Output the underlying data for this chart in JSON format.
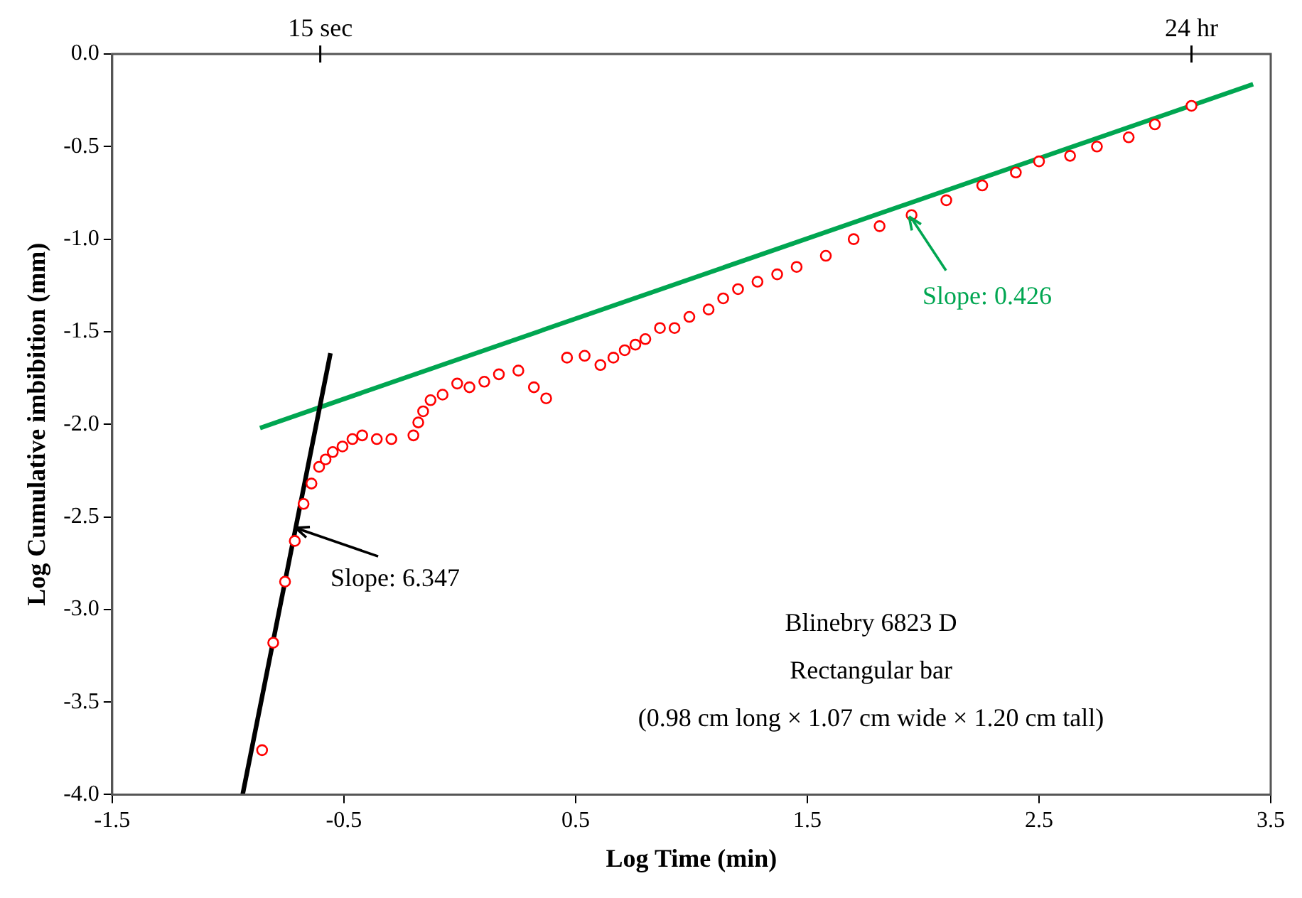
{
  "chart_data": {
    "type": "scatter",
    "xlabel": "Log Time (min)",
    "ylabel": "Log Cumulative imbibition (mm)",
    "xlim": [
      -1.5,
      3.5
    ],
    "xticks": [
      -1.5,
      -0.5,
      0.5,
      1.5,
      2.5,
      3.5
    ],
    "ylim": [
      -4.0,
      0.0
    ],
    "yticks": [
      {
        "value": -4,
        "label": "-4.0"
      },
      {
        "value": -3.5,
        "label": "-3.5"
      },
      {
        "value": -3,
        "label": "-3.0"
      },
      {
        "value": -2.5,
        "label": "-2.5"
      },
      {
        "value": -2,
        "label": "-2.0"
      },
      {
        "value": -1.5,
        "label": "-1.5"
      },
      {
        "value": -1,
        "label": "-1.0"
      },
      {
        "value": -0.5,
        "label": "-0.5"
      },
      {
        "value": 0,
        "label": "0.0"
      }
    ],
    "grid": false,
    "legend": false,
    "series": [
      {
        "color": "#ff0000",
        "marker": "circle",
        "x": [
          -0.853,
          -0.805,
          -0.754,
          -0.712,
          -0.674,
          -0.64,
          -0.607,
          -0.579,
          -0.548,
          -0.506,
          -0.463,
          -0.421,
          -0.358,
          -0.295,
          -0.2,
          -0.179,
          -0.158,
          -0.126,
          -0.074,
          -0.011,
          0.042,
          0.106,
          0.169,
          0.253,
          0.32,
          0.373,
          0.463,
          0.539,
          0.607,
          0.663,
          0.712,
          0.758,
          0.801,
          0.864,
          0.927,
          0.991,
          1.074,
          1.137,
          1.201,
          1.285,
          1.37,
          1.454,
          1.58,
          1.7,
          1.812,
          1.95,
          2.1,
          2.255,
          2.4,
          2.5,
          2.634,
          2.75,
          2.887,
          3.0,
          3.158
        ],
        "values": [
          -3.76,
          -3.18,
          -2.85,
          -2.63,
          -2.43,
          -2.32,
          -2.23,
          -2.19,
          -2.15,
          -2.12,
          -2.08,
          -2.06,
          -2.08,
          -2.08,
          -2.06,
          -1.99,
          -1.93,
          -1.87,
          -1.84,
          -1.78,
          -1.8,
          -1.77,
          -1.73,
          -1.71,
          -1.8,
          -1.86,
          -1.64,
          -1.63,
          -1.68,
          -1.64,
          -1.6,
          -1.57,
          -1.54,
          -1.48,
          -1.48,
          -1.42,
          -1.38,
          -1.32,
          -1.27,
          -1.23,
          -1.19,
          -1.15,
          -1.09,
          -1.0,
          -0.93,
          -0.87,
          -0.79,
          -0.71,
          -0.64,
          -0.58,
          -0.55,
          -0.5,
          -0.45,
          -0.38,
          -0.28
        ]
      },
      {
        "type": "line",
        "color": "#000000",
        "marker": "none",
        "x": [
          -0.937,
          -0.558
        ],
        "values": [
          -4.0,
          -1.616
        ]
      },
      {
        "type": "line",
        "color": "#00a651",
        "marker": "none",
        "x": [
          -0.862,
          3.424
        ],
        "values": [
          -2.02,
          -0.163
        ]
      }
    ],
    "annotations": [
      {
        "text": "15 sec",
        "x": -0.602
      },
      {
        "text": "24 hr",
        "x": 3.158
      },
      {
        "text": "Slope: 6.347",
        "x": -0.708,
        "y": -2.56
      },
      {
        "text": "Slope: 0.426",
        "x": 1.939,
        "y": -0.878
      },
      "Blinebry 6823 D",
      "Rectangular bar",
      "(0.98 cm long × 1.07 cm wide × 1.20 cm tall)"
    ]
  }
}
